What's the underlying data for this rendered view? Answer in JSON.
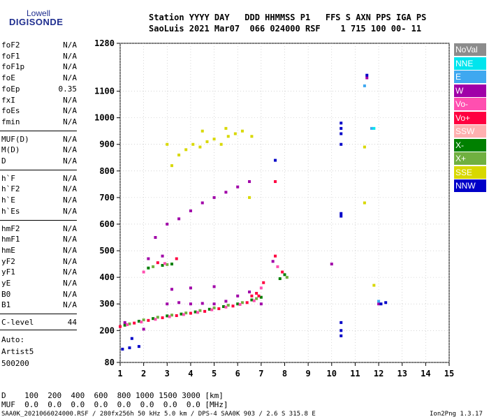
{
  "logo": {
    "line1": "Lowell",
    "line2": "DIGISONDE"
  },
  "header": {
    "row1": "Station YYYY DAY   DDD HHMMSS P1   FFS S AXN PPS IGA PS",
    "row2": "SaoLuis 2021 Mar07  066 024000 RSF    1 715 100 00- 11"
  },
  "params": {
    "group1": [
      {
        "name": "foF2",
        "value": "N/A"
      },
      {
        "name": "foF1",
        "value": "N/A"
      },
      {
        "name": "foF1p",
        "value": "N/A"
      },
      {
        "name": "foE",
        "value": "N/A"
      },
      {
        "name": "foEp",
        "value": "0.35"
      },
      {
        "name": "fxI",
        "value": "N/A"
      },
      {
        "name": "foEs",
        "value": "N/A"
      },
      {
        "name": "fmin",
        "value": "N/A"
      }
    ],
    "group2": [
      {
        "name": "MUF(D)",
        "value": "N/A"
      },
      {
        "name": "M(D)",
        "value": "N/A"
      },
      {
        "name": "D",
        "value": "N/A"
      }
    ],
    "group3": [
      {
        "name": "h`F",
        "value": "N/A"
      },
      {
        "name": "h`F2",
        "value": "N/A"
      },
      {
        "name": "h`E",
        "value": "N/A"
      },
      {
        "name": "h`Es",
        "value": "N/A"
      }
    ],
    "group4": [
      {
        "name": "hmF2",
        "value": "N/A"
      },
      {
        "name": "hmF1",
        "value": "N/A"
      },
      {
        "name": "hmE",
        "value": "N/A"
      },
      {
        "name": "yF2",
        "value": "N/A"
      },
      {
        "name": "yF1",
        "value": "N/A"
      },
      {
        "name": "yE",
        "value": "N/A"
      },
      {
        "name": "B0",
        "value": "N/A"
      },
      {
        "name": "B1",
        "value": "N/A"
      }
    ],
    "clevel": {
      "name": "C-level",
      "value": "44"
    }
  },
  "auto": {
    "line1": "Auto:",
    "line2": "Artist5",
    "line3": "500200"
  },
  "legend": [
    {
      "label": "NoVal",
      "color": "#8c8c8c"
    },
    {
      "label": "NNE",
      "color": "#00e5ee"
    },
    {
      "label": "E",
      "color": "#3fa8f0"
    },
    {
      "label": "W",
      "color": "#a000a8"
    },
    {
      "label": "Vo-",
      "color": "#ff4fb0"
    },
    {
      "label": "Vo+",
      "color": "#ff0040"
    },
    {
      "label": "SSW",
      "color": "#ffb0b0"
    },
    {
      "label": "X-",
      "color": "#008000"
    },
    {
      "label": "X+",
      "color": "#70b040"
    },
    {
      "label": "SSE",
      "color": "#d8d800"
    },
    {
      "label": "NNW",
      "color": "#0000c8"
    }
  ],
  "bottom": {
    "d_row": "D    100  200  400  600  800 1000 1500 3000 [km]",
    "muf_row": "MUF  0.0  0.0  0.0  0.0  0.0  0.0  0.0  0.0 [MHz]"
  },
  "footer": {
    "left": "SAA0K_2021066024000.RSF / 280fx256h 50 kHz 5.0 km / DPS-4 SAA0K 903 / 2.6 S 315.8 E",
    "right": "Ion2Png 1.3.17"
  },
  "chart_data": {
    "type": "scatter",
    "x_ticks": [
      "1",
      "2",
      "3",
      "4",
      "5",
      "6",
      "7",
      "8",
      "9",
      "10",
      "11",
      "12",
      "13",
      "14",
      "15"
    ],
    "y_ticks": [
      "80",
      "200",
      "300",
      "400",
      "500",
      "600",
      "700",
      "800",
      "900",
      "1000",
      "1100",
      "1280"
    ],
    "xlim": [
      1,
      15
    ],
    "ylim": [
      80,
      1280
    ],
    "series": [
      {
        "name": "X-",
        "color": "#008000",
        "points": [
          [
            1.2,
            220
          ],
          [
            1.8,
            235
          ],
          [
            2.4,
            245
          ],
          [
            3.0,
            255
          ],
          [
            3.6,
            262
          ],
          [
            4.2,
            270
          ],
          [
            4.8,
            280
          ],
          [
            5.4,
            290
          ],
          [
            6.0,
            300
          ],
          [
            6.6,
            315
          ],
          [
            7.0,
            325
          ],
          [
            2.2,
            435
          ],
          [
            2.8,
            445
          ],
          [
            3.2,
            450
          ],
          [
            8.0,
            410
          ],
          [
            7.8,
            395
          ]
        ]
      },
      {
        "name": "X+",
        "color": "#70b040",
        "points": [
          [
            1.4,
            225
          ],
          [
            2.0,
            240
          ],
          [
            2.6,
            250
          ],
          [
            3.2,
            258
          ],
          [
            3.8,
            266
          ],
          [
            4.4,
            275
          ],
          [
            5.0,
            285
          ],
          [
            5.6,
            295
          ],
          [
            6.2,
            305
          ],
          [
            6.8,
            320
          ],
          [
            2.4,
            440
          ],
          [
            3.0,
            448
          ],
          [
            8.1,
            400
          ]
        ]
      },
      {
        "name": "Vo+",
        "color": "#ff0040",
        "points": [
          [
            1.0,
            215
          ],
          [
            1.6,
            228
          ],
          [
            2.2,
            238
          ],
          [
            2.8,
            248
          ],
          [
            3.4,
            256
          ],
          [
            4.0,
            265
          ],
          [
            4.6,
            272
          ],
          [
            5.2,
            282
          ],
          [
            5.8,
            292
          ],
          [
            6.4,
            305
          ],
          [
            6.9,
            330
          ],
          [
            7.1,
            380
          ],
          [
            2.6,
            455
          ],
          [
            3.4,
            470
          ],
          [
            7.6,
            480
          ],
          [
            7.6,
            760
          ],
          [
            7.9,
            420
          ],
          [
            6.8,
            340
          ],
          [
            6.6,
            330
          ]
        ]
      },
      {
        "name": "Vo-",
        "color": "#ff4fb0",
        "points": [
          [
            1.3,
            222
          ],
          [
            1.9,
            232
          ],
          [
            2.5,
            242
          ],
          [
            3.1,
            252
          ],
          [
            3.7,
            260
          ],
          [
            4.3,
            268
          ],
          [
            4.9,
            278
          ],
          [
            5.5,
            288
          ],
          [
            6.1,
            298
          ],
          [
            6.7,
            312
          ],
          [
            7.0,
            360
          ],
          [
            2.0,
            420
          ],
          [
            2.9,
            452
          ],
          [
            7.7,
            440
          ]
        ]
      },
      {
        "name": "W",
        "color": "#a000a8",
        "points": [
          [
            1.2,
            230
          ],
          [
            2.0,
            205
          ],
          [
            3.0,
            300
          ],
          [
            3.5,
            305
          ],
          [
            4.0,
            300
          ],
          [
            4.5,
            302
          ],
          [
            5.0,
            300
          ],
          [
            5.5,
            310
          ],
          [
            6.0,
            330
          ],
          [
            6.5,
            345
          ],
          [
            3.2,
            355
          ],
          [
            4.0,
            360
          ],
          [
            5.0,
            365
          ],
          [
            2.2,
            470
          ],
          [
            2.8,
            480
          ],
          [
            2.5,
            550
          ],
          [
            3.0,
            600
          ],
          [
            3.5,
            620
          ],
          [
            4.0,
            650
          ],
          [
            4.5,
            680
          ],
          [
            5.0,
            700
          ],
          [
            5.5,
            720
          ],
          [
            6.0,
            740
          ],
          [
            6.5,
            760
          ],
          [
            7.0,
            300
          ],
          [
            7.5,
            460
          ],
          [
            10.0,
            450
          ],
          [
            11.5,
            1150
          ],
          [
            12.0,
            300
          ]
        ]
      },
      {
        "name": "SSE",
        "color": "#d8d800",
        "points": [
          [
            3.2,
            820
          ],
          [
            3.5,
            860
          ],
          [
            3.8,
            880
          ],
          [
            4.1,
            900
          ],
          [
            4.4,
            890
          ],
          [
            4.7,
            910
          ],
          [
            5.0,
            920
          ],
          [
            5.3,
            900
          ],
          [
            5.6,
            930
          ],
          [
            5.9,
            940
          ],
          [
            6.2,
            950
          ],
          [
            6.6,
            930
          ],
          [
            3.0,
            900
          ],
          [
            4.5,
            950
          ],
          [
            5.5,
            960
          ],
          [
            11.4,
            680
          ],
          [
            11.4,
            890
          ],
          [
            11.8,
            370
          ],
          [
            6.5,
            700
          ]
        ]
      },
      {
        "name": "NNW",
        "color": "#0000c8",
        "points": [
          [
            1.1,
            130
          ],
          [
            1.4,
            135
          ],
          [
            1.8,
            140
          ],
          [
            10.4,
            900
          ],
          [
            10.4,
            940
          ],
          [
            10.4,
            980
          ],
          [
            10.4,
            960
          ],
          [
            10.4,
            640
          ],
          [
            10.4,
            630
          ],
          [
            10.4,
            230
          ],
          [
            10.4,
            200
          ],
          [
            10.4,
            180
          ],
          [
            11.5,
            1160
          ],
          [
            12.1,
            300
          ],
          [
            12.3,
            305
          ],
          [
            7.6,
            840
          ],
          [
            1.5,
            170
          ]
        ]
      },
      {
        "name": "E",
        "color": "#3fa8f0",
        "points": [
          [
            11.4,
            1120
          ],
          [
            11.7,
            960
          ],
          [
            12.0,
            310
          ]
        ]
      },
      {
        "name": "NNE",
        "color": "#00e5ee",
        "points": [
          [
            11.8,
            960
          ]
        ]
      }
    ]
  }
}
